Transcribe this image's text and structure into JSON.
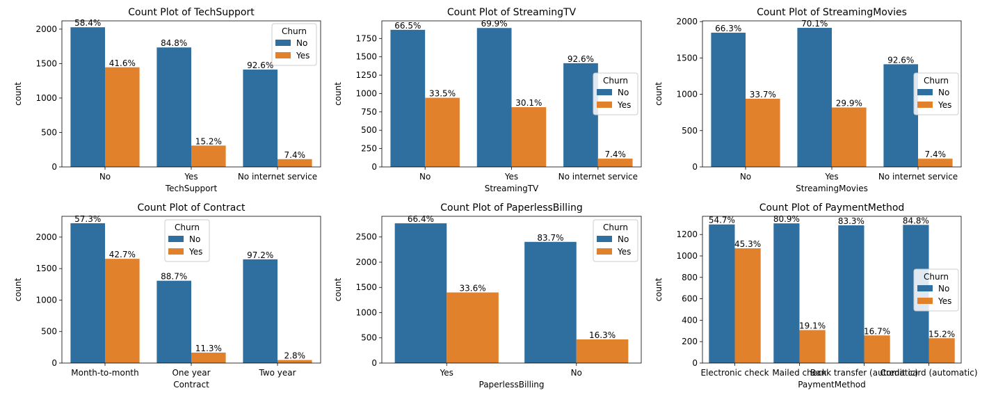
{
  "colors": {
    "No": "#2f6f9f",
    "Yes": "#e1812c"
  },
  "chart_data": [
    {
      "type": "bar",
      "title": "Count Plot of TechSupport",
      "xlabel": "TechSupport",
      "ylabel": "count",
      "categories": [
        "No",
        "Yes",
        "No internet service"
      ],
      "series": [
        {
          "name": "No",
          "values": [
            2027,
            1734,
            1413
          ],
          "labels": [
            "58.4%",
            "84.8%",
            "92.6%"
          ]
        },
        {
          "name": "Yes",
          "values": [
            1446,
            310,
            113
          ],
          "labels": [
            "41.6%",
            "15.2%",
            "7.4%"
          ]
        }
      ],
      "ylim": [
        0,
        2120
      ],
      "yticks": [
        0,
        500,
        1000,
        1500,
        2000
      ],
      "legend": {
        "title": "Churn",
        "placement": "upper right"
      }
    },
    {
      "type": "bar",
      "title": "Count Plot of StreamingTV",
      "xlabel": "StreamingTV",
      "ylabel": "count",
      "categories": [
        "No",
        "Yes",
        "No internet service"
      ],
      "series": [
        {
          "name": "No",
          "values": [
            1868,
            1893,
            1413
          ],
          "labels": [
            "66.5%",
            "69.9%",
            "92.6%"
          ]
        },
        {
          "name": "Yes",
          "values": [
            942,
            814,
            113
          ],
          "labels": [
            "33.5%",
            "30.1%",
            "7.4%"
          ]
        }
      ],
      "ylim": [
        0,
        1990
      ],
      "yticks": [
        0,
        250,
        500,
        750,
        1000,
        1250,
        1500,
        1750
      ],
      "legend": {
        "title": "Churn",
        "placement": "center right"
      }
    },
    {
      "type": "bar",
      "title": "Count Plot of StreamingMovies",
      "xlabel": "StreamingMovies",
      "ylabel": "count",
      "categories": [
        "No",
        "Yes",
        "No internet service"
      ],
      "series": [
        {
          "name": "No",
          "values": [
            1847,
            1914,
            1413
          ],
          "labels": [
            "66.3%",
            "70.1%",
            "92.6%"
          ]
        },
        {
          "name": "Yes",
          "values": [
            938,
            818,
            113
          ],
          "labels": [
            "33.7%",
            "29.9%",
            "7.4%"
          ]
        }
      ],
      "ylim": [
        0,
        2010
      ],
      "yticks": [
        0,
        500,
        1000,
        1500,
        2000
      ],
      "legend": {
        "title": "Churn",
        "placement": "center right"
      }
    },
    {
      "type": "bar",
      "title": "Count Plot of Contract",
      "xlabel": "Contract",
      "ylabel": "count",
      "categories": [
        "Month-to-month",
        "One year",
        "Two year"
      ],
      "series": [
        {
          "name": "No",
          "values": [
            2220,
            1307,
            1647
          ],
          "labels": [
            "57.3%",
            "88.7%",
            "97.2%"
          ]
        },
        {
          "name": "Yes",
          "values": [
            1655,
            166,
            48
          ],
          "labels": [
            "42.7%",
            "11.3%",
            "2.8%"
          ]
        }
      ],
      "ylim": [
        0,
        2330
      ],
      "yticks": [
        0,
        500,
        1000,
        1500,
        2000
      ],
      "legend": {
        "title": "Churn",
        "placement": "upper center"
      }
    },
    {
      "type": "bar",
      "title": "Count Plot of PaperlessBilling",
      "xlabel": "PaperlessBilling",
      "ylabel": "count",
      "categories": [
        "Yes",
        "No"
      ],
      "series": [
        {
          "name": "No",
          "values": [
            2771,
            2403
          ],
          "labels": [
            "66.4%",
            "83.7%"
          ]
        },
        {
          "name": "Yes",
          "values": [
            1400,
            469
          ],
          "labels": [
            "33.6%",
            "16.3%"
          ]
        }
      ],
      "ylim": [
        0,
        2910
      ],
      "yticks": [
        0,
        500,
        1000,
        1500,
        2000,
        2500
      ],
      "legend": {
        "title": "Churn",
        "placement": "upper right"
      }
    },
    {
      "type": "bar",
      "title": "Count Plot of PaymentMethod",
      "xlabel": "PaymentMethod",
      "ylabel": "count",
      "categories": [
        "Electronic check",
        "Mailed check",
        "Bank transfer (automatic)",
        "Credit card (automatic)"
      ],
      "series": [
        {
          "name": "No",
          "values": [
            1294,
            1304,
            1286,
            1290
          ],
          "labels": [
            "54.7%",
            "80.9%",
            "83.3%",
            "84.8%"
          ]
        },
        {
          "name": "Yes",
          "values": [
            1071,
            308,
            258,
            232
          ],
          "labels": [
            "45.3%",
            "19.1%",
            "16.7%",
            "15.2%"
          ]
        }
      ],
      "ylim": [
        0,
        1370
      ],
      "yticks": [
        0,
        200,
        400,
        600,
        800,
        1000,
        1200
      ],
      "legend": {
        "title": "Churn",
        "placement": "center right"
      }
    }
  ]
}
